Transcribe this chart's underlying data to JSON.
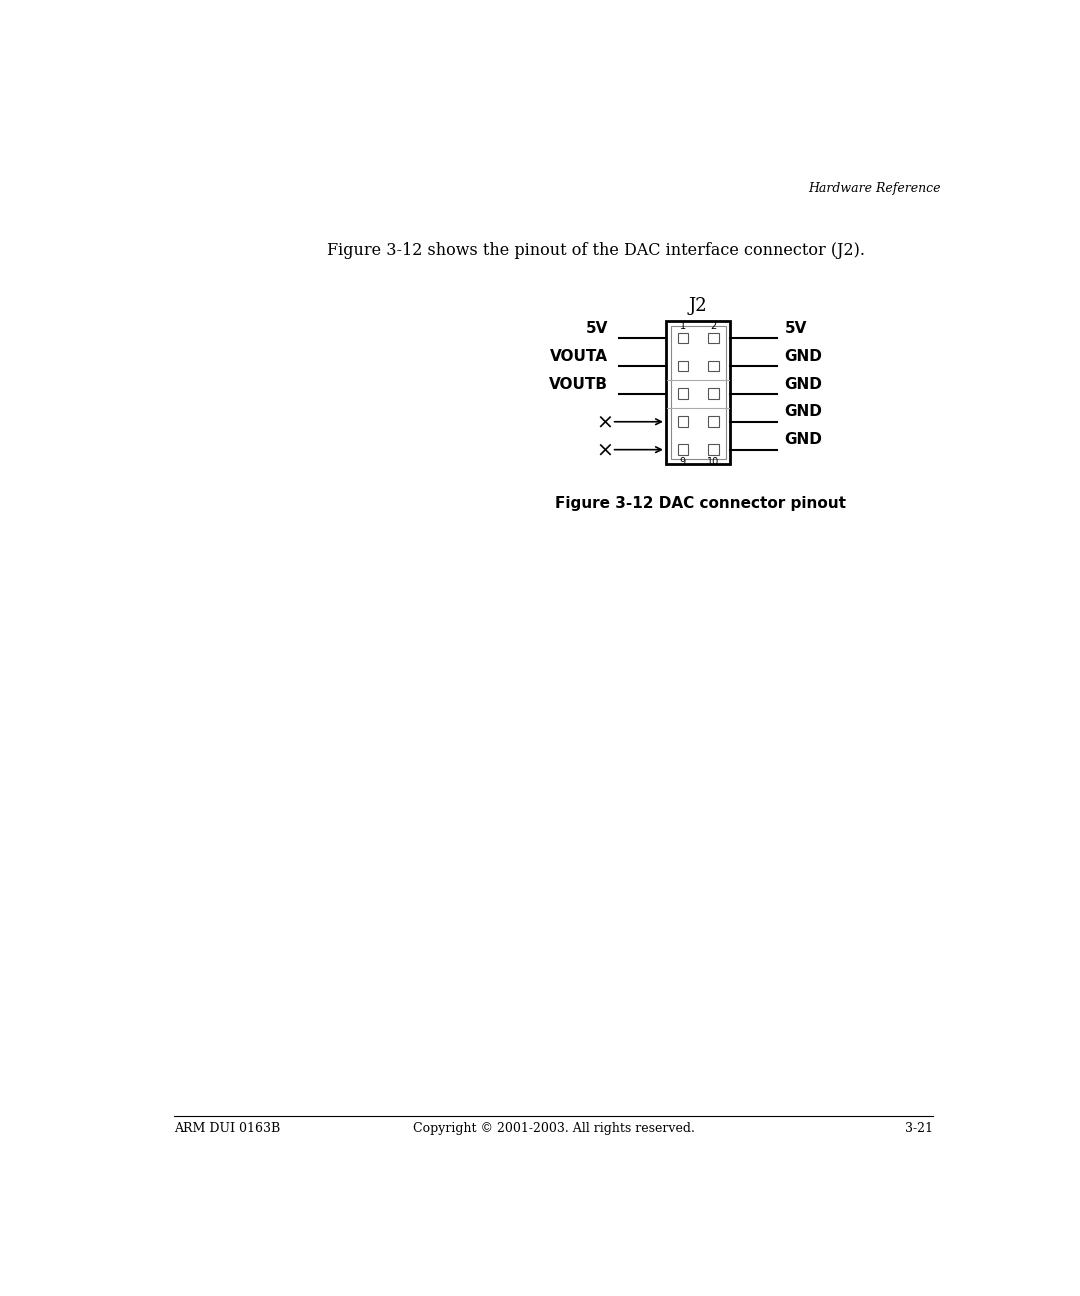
{
  "page_title": "Hardware Reference",
  "intro_text": "Figure 3-12 shows the pinout of the DAC interface connector (J2).",
  "figure_caption": "Figure 3-12 DAC connector pinout",
  "footer_left": "ARM DUI 0163B",
  "footer_center": "Copyright © 2001-2003. All rights reserved.",
  "footer_right": "3-21",
  "connector_label": "J2",
  "pin_rows": 5,
  "left_labels": [
    "5V",
    "VOUTA",
    "VOUTB",
    "",
    ""
  ],
  "right_labels": [
    "5V",
    "GND",
    "GND",
    "GND",
    "GND"
  ],
  "left_no_connect": [
    false,
    false,
    false,
    true,
    true
  ],
  "bg_color": "#ffffff",
  "text_color": "#000000"
}
